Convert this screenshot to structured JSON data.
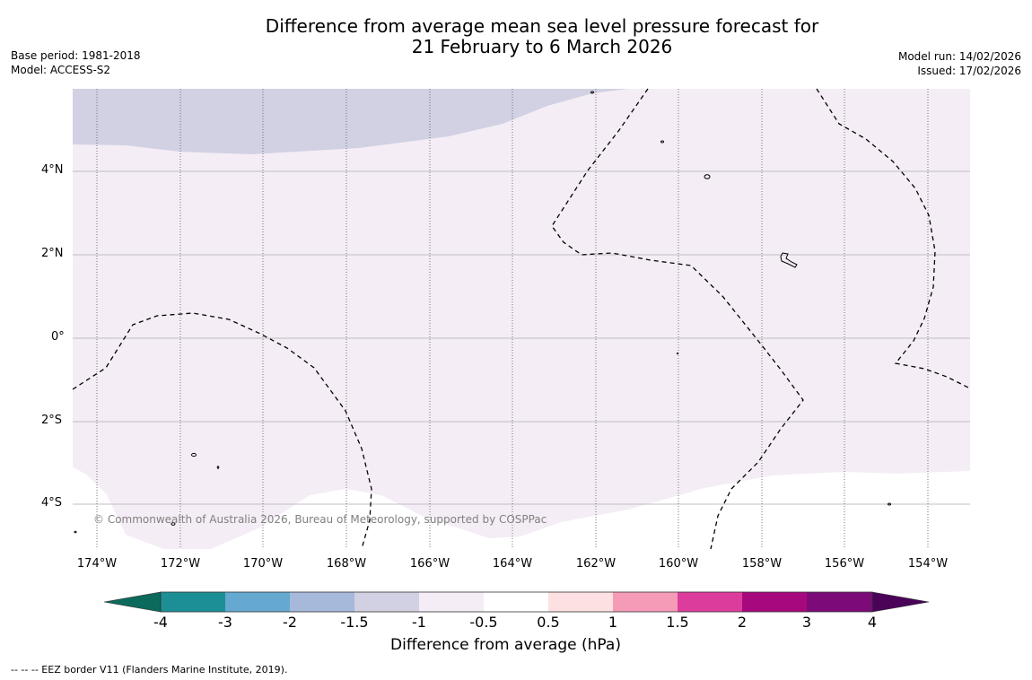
{
  "header": {
    "title_line1": "Difference from average mean sea level pressure forecast for",
    "title_line2": "21 February to 6 March 2026",
    "base_period": "Base period: 1981-2018",
    "model": "Model: ACCESS-S2",
    "model_run": "Model run: 14/02/2026",
    "issued": "Issued: 17/02/2026"
  },
  "map": {
    "lat_labels": [
      "4°N",
      "2°N",
      "0°",
      "2°S",
      "4°S"
    ],
    "lon_labels": [
      "174°W",
      "172°W",
      "170°W",
      "168°W",
      "166°W",
      "164°W",
      "162°W",
      "160°W",
      "158°W",
      "156°W",
      "154°W"
    ],
    "copyright": "© Commonwealth of Australia 2026, Bureau of Meteorology, supported by COSPPac",
    "fill_colors": {
      "minus_1_5_to_minus_1": "#d1d1e3",
      "minus_1_to_minus_0_5": "#f4edf5",
      "minus_0_5_to_0_5": "#ffffff"
    }
  },
  "colorbar": {
    "label": "Difference from average (hPa)",
    "ticks": [
      "-4",
      "-3",
      "-2",
      "-1.5",
      "-1",
      "-0.5",
      "0.5",
      "1",
      "1.5",
      "2",
      "3",
      "4"
    ],
    "colors": [
      "#0c6a5c",
      "#1c8f96",
      "#65a9d0",
      "#a7b9db",
      "#d1d1e3",
      "#f4edf5",
      "#ffffff",
      "#fde0e2",
      "#f59bb8",
      "#dc3d9c",
      "#a8087d",
      "#7c0b79",
      "#4a0359"
    ]
  },
  "legend": {
    "eez_text": "--  --  -- EEZ border V11 (Flanders Marine Institute, 2019)."
  }
}
